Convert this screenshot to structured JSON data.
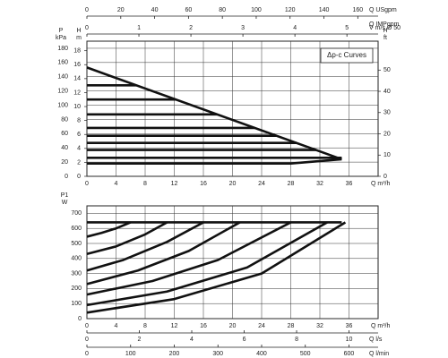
{
  "chart_data": [
    {
      "type": "line",
      "ylabel": "P",
      "yunit": "kPa",
      "xlabel": "Q m³/h",
      "xlim": [
        0,
        40
      ],
      "xticks": [
        0,
        4,
        8,
        12,
        16,
        20,
        24,
        28,
        32,
        36
      ],
      "ylim": [
        0,
        190
      ],
      "yticks": [
        0,
        20,
        40,
        60,
        80,
        100,
        120,
        140,
        160,
        180
      ],
      "grid": true,
      "annotation": "Δp-c Curves",
      "y_axes": [
        {
          "label": "H",
          "unit": "m",
          "side": "left",
          "ylim": [
            0,
            19.37
          ],
          "yticks": [
            0,
            2,
            4,
            6,
            8,
            10,
            12,
            14,
            16,
            18
          ]
        },
        {
          "label": "H",
          "unit": "ft",
          "side": "right",
          "ylim": [
            0,
            63.6
          ],
          "yticks": [
            0,
            10,
            20,
            30,
            40,
            50
          ]
        }
      ],
      "x_axes": [
        {
          "label": "Q USgpm",
          "position": "top",
          "xlim": [
            0,
            172
          ],
          "xticks": [
            0,
            20,
            40,
            60,
            80,
            100,
            120,
            140,
            160
          ]
        },
        {
          "label": "Q IMPgpm",
          "position": "top"
        },
        {
          "label": "V m/s Ø 50",
          "position": "top",
          "xlim": [
            0,
            5.6
          ],
          "xticks": [
            0,
            1,
            2,
            3,
            4,
            5
          ]
        }
      ],
      "series": [
        {
          "color": "#111111",
          "x": [
            0,
            35
          ],
          "values": [
            153,
            24
          ]
        },
        {
          "color": "#111111",
          "x": [
            0,
            6.8
          ],
          "values": [
            128,
            128
          ]
        },
        {
          "color": "#111111",
          "x": [
            0,
            12.2
          ],
          "values": [
            108,
            108
          ]
        },
        {
          "color": "#111111",
          "x": [
            0,
            17.9
          ],
          "values": [
            87,
            87
          ]
        },
        {
          "color": "#111111",
          "x": [
            0,
            23.1
          ],
          "values": [
            68,
            68
          ]
        },
        {
          "color": "#111111",
          "x": [
            0,
            26
          ],
          "values": [
            57,
            57
          ]
        },
        {
          "color": "#111111",
          "x": [
            0,
            28.8
          ],
          "values": [
            47,
            47
          ]
        },
        {
          "color": "#111111",
          "x": [
            0,
            31.5
          ],
          "values": [
            37,
            37
          ]
        },
        {
          "color": "#111111",
          "x": [
            0,
            35
          ],
          "values": [
            26,
            26
          ]
        },
        {
          "color": "#111111",
          "x": [
            0,
            28,
            35
          ],
          "values": [
            18,
            18,
            24
          ]
        }
      ]
    },
    {
      "type": "line",
      "ylabel": "P1",
      "yunit": "W",
      "xlabel": "Q m³/h",
      "xlim": [
        0,
        40
      ],
      "xticks": [
        0,
        4,
        8,
        12,
        16,
        20,
        24,
        28,
        32,
        36
      ],
      "ylim": [
        0,
        750
      ],
      "yticks": [
        0,
        100,
        200,
        300,
        400,
        500,
        600,
        700
      ],
      "grid": true,
      "x_axes": [
        {
          "label": "Q l/s",
          "position": "bottom",
          "xlim": [
            0,
            11.11
          ],
          "xticks": [
            0,
            2,
            4,
            6,
            8,
            10
          ]
        },
        {
          "label": "Q l/min",
          "position": "bottom",
          "xlim": [
            0,
            666.7
          ],
          "xticks": [
            0,
            100,
            200,
            300,
            400,
            500,
            600
          ]
        }
      ],
      "series": [
        {
          "color": "#111111",
          "x": [
            0,
            35
          ],
          "values": [
            640,
            640
          ]
        },
        {
          "color": "#111111",
          "x": [
            0,
            2,
            4,
            6
          ],
          "values": [
            545,
            570,
            600,
            640
          ]
        },
        {
          "color": "#111111",
          "x": [
            0,
            4,
            8,
            11
          ],
          "values": [
            430,
            480,
            560,
            640
          ]
        },
        {
          "color": "#111111",
          "x": [
            0,
            5,
            11,
            16
          ],
          "values": [
            320,
            390,
            510,
            640
          ]
        },
        {
          "color": "#111111",
          "x": [
            0,
            7,
            14,
            21
          ],
          "values": [
            230,
            320,
            450,
            640
          ]
        },
        {
          "color": "#111111",
          "x": [
            0,
            9,
            18,
            28
          ],
          "values": [
            160,
            250,
            390,
            640
          ]
        },
        {
          "color": "#111111",
          "x": [
            0,
            11,
            22,
            33
          ],
          "values": [
            90,
            180,
            340,
            640
          ]
        },
        {
          "color": "#111111",
          "x": [
            0,
            12,
            24,
            35.5
          ],
          "values": [
            40,
            130,
            300,
            640
          ]
        }
      ]
    }
  ]
}
